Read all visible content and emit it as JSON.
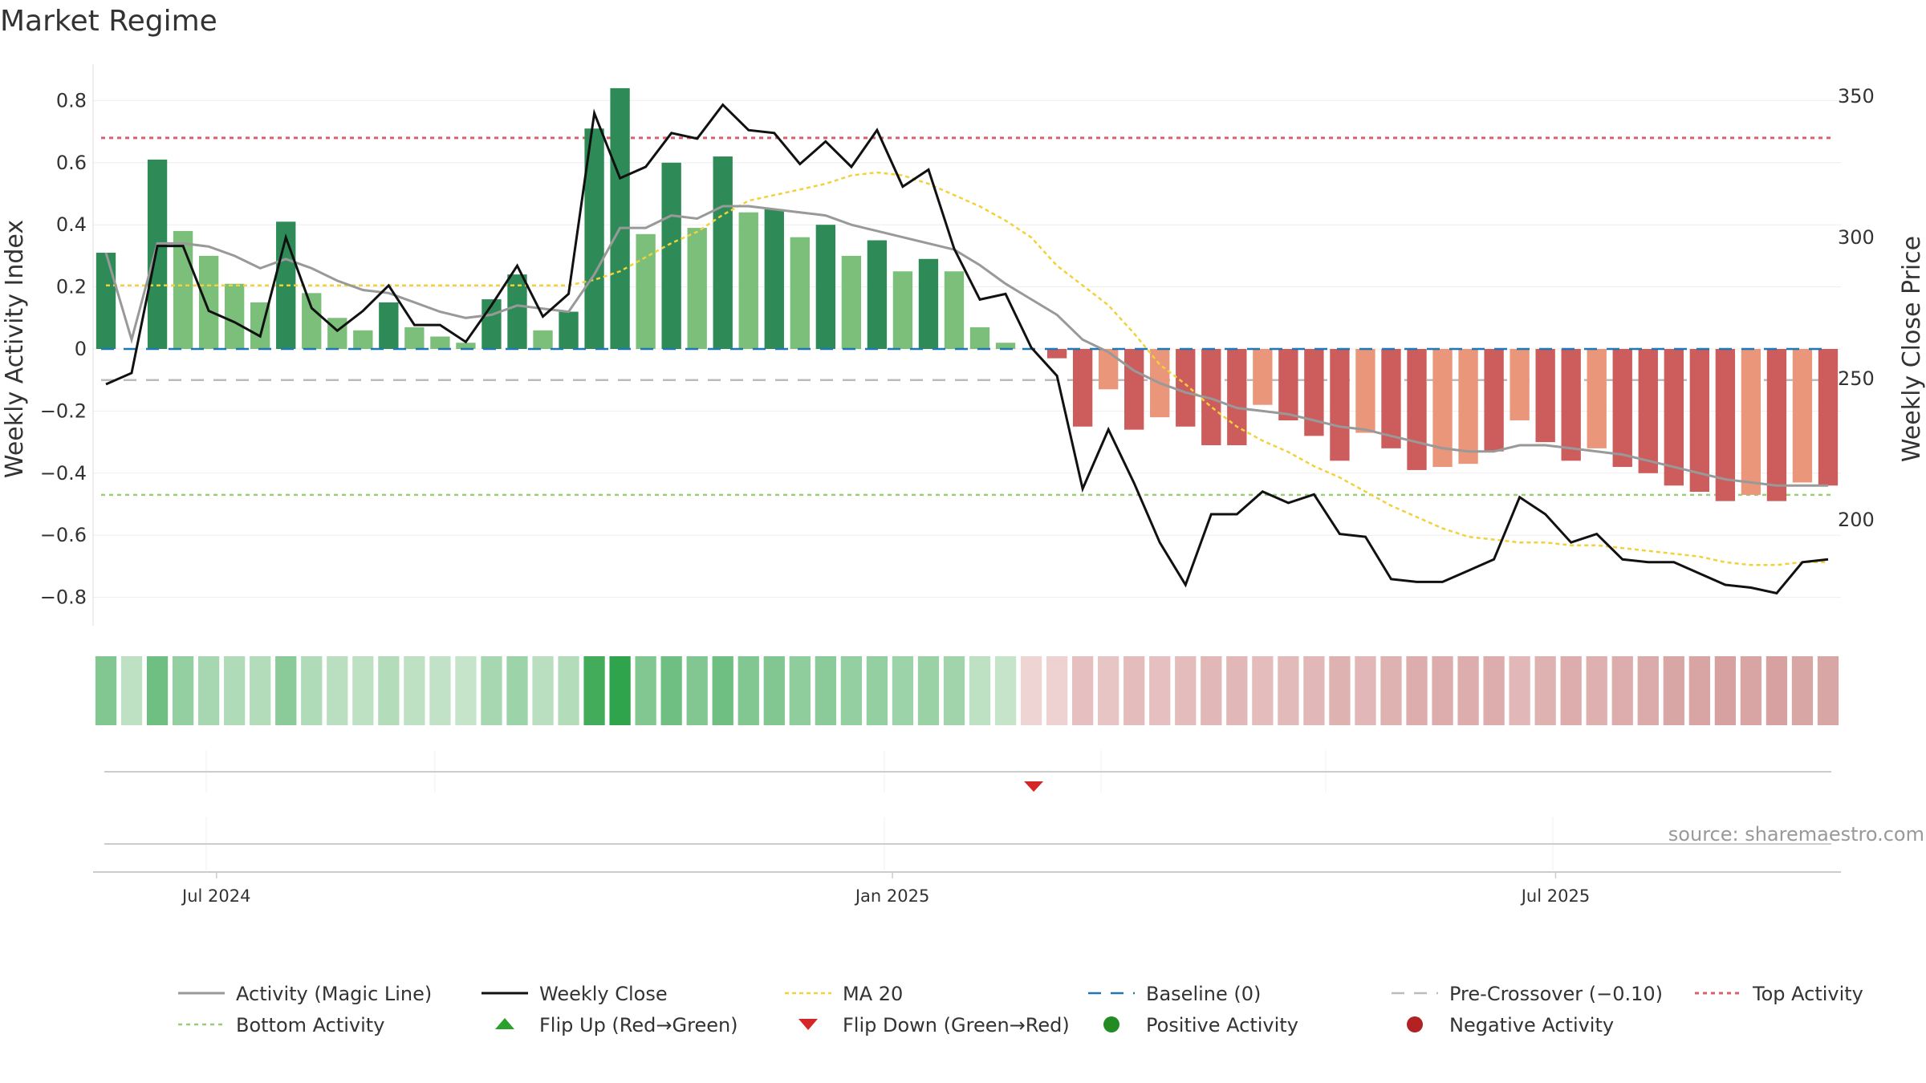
{
  "chart_data": {
    "type": "bar",
    "title": "Market Regime",
    "ylabel": "Weekly Activity Index",
    "y2label": "Weekly Close Price",
    "ylim": [
      -0.92,
      0.92
    ],
    "y2lim": [
      165,
      380
    ],
    "yticks": [
      {
        "v": 0.8,
        "label": "0.8"
      },
      {
        "v": 0.6,
        "label": "0.6"
      },
      {
        "v": 0.4,
        "label": "0.4"
      },
      {
        "v": 0.2,
        "label": "0.2"
      },
      {
        "v": 0,
        "label": "0"
      },
      {
        "v": -0.2,
        "label": "−0.2"
      },
      {
        "v": -0.4,
        "label": "−0.4"
      },
      {
        "v": -0.6,
        "label": "−0.6"
      },
      {
        "v": -0.8,
        "label": "−0.8"
      }
    ],
    "y2ticks": [
      {
        "v": 350,
        "label": "350"
      },
      {
        "v": 300,
        "label": "300"
      },
      {
        "v": 250,
        "label": "250"
      },
      {
        "v": 200,
        "label": "200"
      }
    ],
    "xticks": [
      {
        "index": 4.3,
        "label": "Jul 2024"
      },
      {
        "index": 30.6,
        "label": "Jan 2025"
      },
      {
        "index": 56.4,
        "label": "Jul 2025"
      }
    ],
    "grid": true,
    "levels": {
      "top": 0.68,
      "bottom": -0.47,
      "baseline": 0,
      "pre_crossover": -0.1
    },
    "activity": [
      0.31,
      0.0,
      0.61,
      0.38,
      0.3,
      0.21,
      0.15,
      0.41,
      0.18,
      0.1,
      0.06,
      0.15,
      0.07,
      0.04,
      0.02,
      0.16,
      0.24,
      0.06,
      0.12,
      0.71,
      0.84,
      0.37,
      0.6,
      0.39,
      0.62,
      0.44,
      0.45,
      0.36,
      0.4,
      0.3,
      0.35,
      0.25,
      0.29,
      0.25,
      0.07,
      0.02,
      0.0,
      -0.03,
      -0.25,
      -0.13,
      -0.26,
      -0.22,
      -0.25,
      -0.31,
      -0.31,
      -0.18,
      -0.23,
      -0.28,
      -0.36,
      -0.27,
      -0.32,
      -0.39,
      -0.38,
      -0.37,
      -0.33,
      -0.23,
      -0.3,
      -0.36,
      -0.32,
      -0.38,
      -0.4,
      -0.44,
      -0.46,
      -0.49,
      -0.47,
      -0.49,
      -0.43,
      -0.44
    ],
    "activity_shade": [
      2,
      0,
      2,
      1,
      1,
      1,
      1,
      2,
      1,
      1,
      1,
      2,
      1,
      1,
      1,
      2,
      2,
      1,
      2,
      2,
      2,
      1,
      2,
      1,
      2,
      1,
      2,
      1,
      2,
      1,
      2,
      1,
      2,
      1,
      1,
      1,
      0,
      2,
      2,
      1,
      2,
      1,
      2,
      2,
      2,
      1,
      2,
      2,
      2,
      1,
      2,
      2,
      1,
      1,
      2,
      1,
      2,
      2,
      1,
      2,
      2,
      2,
      2,
      2,
      1,
      2,
      1,
      2
    ],
    "magic_line": [
      0.31,
      0.03,
      0.34,
      0.34,
      0.33,
      0.3,
      0.26,
      0.29,
      0.26,
      0.22,
      0.19,
      0.18,
      0.15,
      0.12,
      0.1,
      0.11,
      0.14,
      0.13,
      0.12,
      0.24,
      0.39,
      0.39,
      0.43,
      0.42,
      0.46,
      0.46,
      0.45,
      0.44,
      0.43,
      0.4,
      0.38,
      0.36,
      0.34,
      0.32,
      0.27,
      0.21,
      0.16,
      0.11,
      0.03,
      -0.01,
      -0.07,
      -0.11,
      -0.14,
      -0.16,
      -0.19,
      -0.2,
      -0.21,
      -0.23,
      -0.25,
      -0.26,
      -0.28,
      -0.3,
      -0.32,
      -0.33,
      -0.33,
      -0.31,
      -0.31,
      -0.32,
      -0.33,
      -0.34,
      -0.36,
      -0.38,
      -0.4,
      -0.42,
      -0.43,
      -0.44,
      -0.44,
      -0.44
    ],
    "weekly_close": [
      248,
      252,
      297,
      297,
      274,
      270,
      265,
      300,
      275,
      267,
      274,
      283,
      269,
      269,
      263,
      276,
      290,
      272,
      280,
      344,
      321,
      325,
      337,
      335,
      347,
      338,
      337,
      326,
      334,
      325,
      338,
      318,
      324,
      296,
      278,
      280,
      261,
      251,
      211,
      232,
      213,
      192,
      177,
      202,
      202,
      210,
      206,
      209,
      195,
      194,
      179,
      178,
      178,
      182,
      186,
      208,
      202,
      192,
      195,
      186,
      185,
      185,
      181,
      177,
      176,
      174,
      185,
      186
    ],
    "ma20": [
      283,
      283,
      283,
      283,
      283,
      283,
      283,
      283,
      283,
      283,
      283,
      283,
      283,
      283,
      283,
      283,
      283,
      283,
      283,
      285,
      288,
      293,
      298,
      302,
      308,
      313,
      315,
      317,
      319,
      322,
      323,
      322,
      319,
      315,
      311,
      306,
      300,
      290,
      283,
      276,
      266,
      255,
      248,
      240,
      233,
      228,
      224,
      219,
      215,
      210,
      205,
      201,
      197,
      194,
      193,
      192,
      192,
      191,
      191,
      190,
      189,
      188,
      187,
      185,
      184,
      184,
      185,
      185
    ],
    "regime_strip": [
      0.55,
      0.22,
      0.65,
      0.45,
      0.35,
      0.3,
      0.28,
      0.5,
      0.3,
      0.25,
      0.22,
      0.28,
      0.22,
      0.2,
      0.18,
      0.35,
      0.4,
      0.25,
      0.28,
      0.9,
      1.0,
      0.55,
      0.65,
      0.55,
      0.65,
      0.55,
      0.55,
      0.48,
      0.5,
      0.45,
      0.45,
      0.4,
      0.42,
      0.38,
      0.22,
      0.18,
      0.15,
      0.18,
      0.35,
      0.3,
      0.4,
      0.35,
      0.4,
      0.45,
      0.45,
      0.4,
      0.42,
      0.45,
      0.5,
      0.45,
      0.5,
      0.55,
      0.55,
      0.55,
      0.55,
      0.45,
      0.5,
      0.55,
      0.52,
      0.55,
      0.58,
      0.62,
      0.65,
      0.68,
      0.65,
      0.68,
      0.62,
      0.62
    ],
    "flip_down_index": 36,
    "legend": [
      "Activity (Magic Line)",
      "Weekly Close",
      "MA 20",
      "Baseline (0)",
      "Pre-Crossover (−0.10)",
      "Top Activity",
      "Bottom Activity",
      "Flip Up (Red→Green)",
      "Flip Down (Green→Red)",
      "Positive Activity",
      "Negative Activity"
    ],
    "source": "source: sharemaestro.com"
  },
  "colors": {
    "green_dark": "#2e8b57",
    "green_light": "#7bbf7a",
    "green_pale": "#b7ddb0",
    "red_dark": "#cd5c5c",
    "red_light": "#e9967a",
    "red_pale": "#f2c4b8",
    "magic_line": "#999999",
    "weekly_close": "#111111",
    "ma20": "#f2d13a",
    "baseline": "#1f77b4",
    "pre_crossover": "#bbbbbb",
    "top_activity": "#d9606e",
    "bottom_activity": "#9acd78",
    "flip_up": "#2ca02c",
    "flip_down": "#d62728",
    "positive_dot": "#228b22",
    "negative_dot": "#b22222"
  }
}
